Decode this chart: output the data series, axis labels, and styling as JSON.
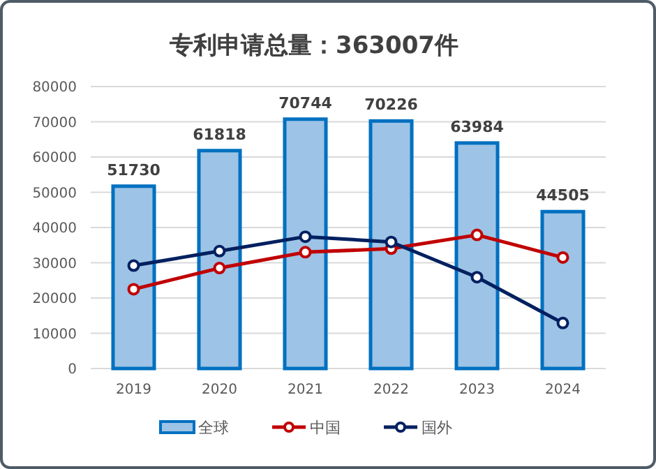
{
  "chart_data": {
    "type": "bar",
    "title": "专利申请总量：363007件",
    "categories": [
      "2019",
      "2020",
      "2021",
      "2022",
      "2023",
      "2024"
    ],
    "series": [
      {
        "name": "全球",
        "color": "#9dc3e6",
        "values": [
          51730,
          61818,
          70744,
          70226,
          63984,
          44505
        ],
        "value_labels": [
          "51730",
          "61818",
          "70744",
          "70226",
          "63984",
          "44505"
        ]
      },
      {
        "name": "中国",
        "type": "line",
        "color": "#c00000",
        "values": [
          22500,
          28500,
          33000,
          34000,
          37900,
          31500
        ]
      },
      {
        "name": "国外",
        "type": "line",
        "color": "#002060",
        "values": [
          29200,
          33300,
          37400,
          35900,
          25900,
          12900
        ]
      }
    ],
    "ylim": [
      0,
      80000
    ],
    "yticks": [
      0,
      10000,
      20000,
      30000,
      40000,
      50000,
      60000,
      70000,
      80000
    ],
    "grid": "y",
    "legend": "bottom",
    "marker": "circle",
    "line_style": "solid"
  }
}
